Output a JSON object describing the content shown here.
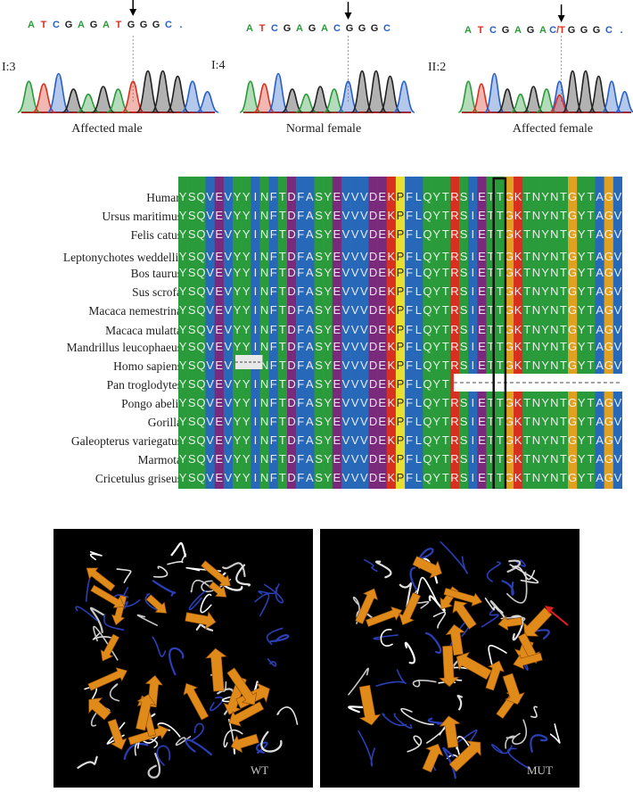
{
  "chromatograms": [
    {
      "id": "I:3",
      "sequence": [
        "A",
        "T",
        "C",
        "G",
        "A",
        "G",
        "A",
        "T",
        "G",
        "G",
        "G",
        "C",
        "."
      ],
      "caption": "Affected male",
      "arrow_index": 7
    },
    {
      "id": "I:4",
      "sequence": [
        "A",
        "T",
        "C",
        "G",
        "A",
        "G",
        "A",
        "C",
        "G",
        "G",
        "G",
        "C"
      ],
      "caption": "Normal female",
      "arrow_index": 7
    },
    {
      "id": "II:2",
      "sequence": [
        "A",
        "T",
        "C",
        "G",
        "A",
        "G",
        "A",
        "C/T",
        "G",
        "G",
        "G",
        "C",
        "."
      ],
      "caption": "Affected female",
      "arrow_index": 7
    }
  ],
  "alignment": {
    "species": [
      "Human",
      "Ursus maritimus",
      "Felis catus",
      "Leptonychotes weddellii",
      "Bos taurus",
      "Sus scrofa",
      "Macaca nemestrina",
      "Macaca mulatta",
      "Mandrillus leucophaeus",
      "Homo sapiens",
      "Pan troglodytes",
      "Pongo abelii",
      "Gorilla",
      "Galeopterus variegatus",
      "Marmota",
      "Cricetulus griseus"
    ],
    "sequence": "YSQVEVYYINFTDFASYEVVVDEKPFLQYTRSIETTGKTNYNTGYTAGV",
    "highlight_index": 35,
    "colors": {
      "Y": "#2a9b3a",
      "S": "#2a9b3a",
      "Q": "#2a9b3a",
      "V": "#2868b8",
      "E": "#7a2a7a",
      "I": "#2868b8",
      "N": "#2a9b3a",
      "F": "#2868b8",
      "T": "#2a9b3a",
      "D": "#7a2a7a",
      "A": "#2868b8",
      "K": "#d83020",
      "P": "#e8e030",
      "L": "#2868b8",
      "R": "#d83020",
      "G": "#e0a020",
      "C": "#e8c830"
    }
  },
  "structures": [
    {
      "label": "WT"
    },
    {
      "label": "MUT"
    }
  ]
}
